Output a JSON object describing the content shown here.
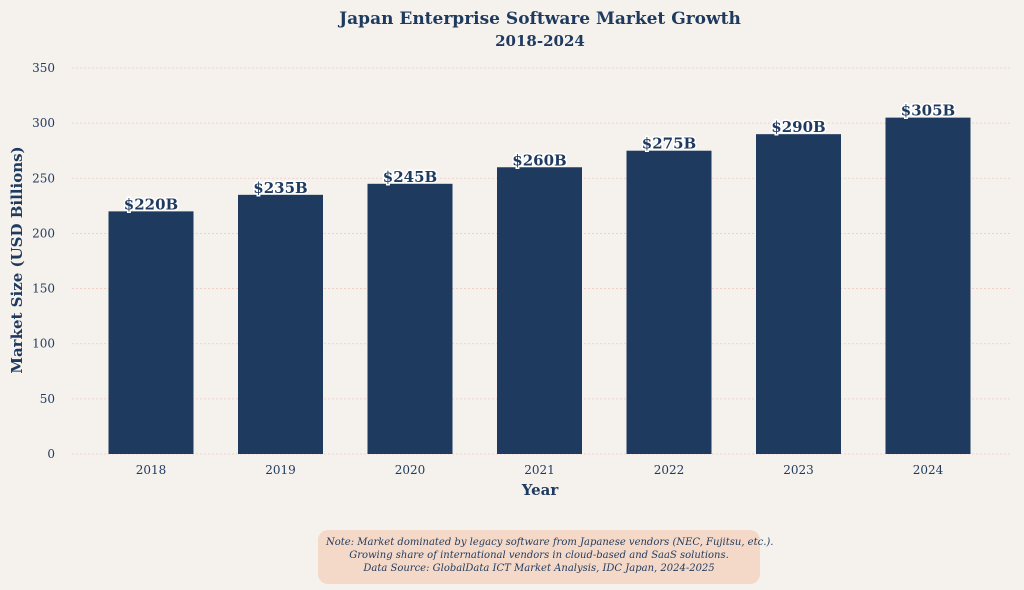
{
  "chart_data": {
    "type": "bar",
    "title": "Japan Enterprise Software Market Growth",
    "subtitle": "2018-2024",
    "xlabel": "Year",
    "ylabel": "Market Size (USD Billions)",
    "categories": [
      "2018",
      "2019",
      "2020",
      "2021",
      "2022",
      "2023",
      "2024"
    ],
    "values": [
      220,
      235,
      245,
      260,
      275,
      290,
      305
    ],
    "data_labels": [
      "$220B",
      "$235B",
      "$245B",
      "$260B",
      "$275B",
      "$290B",
      "$305B"
    ],
    "ylim": [
      0,
      350
    ],
    "yticks": [
      0,
      50,
      100,
      150,
      200,
      250,
      300,
      350
    ],
    "grid": true,
    "colors": {
      "bar": "#1f3a5f",
      "grid": "#f2c9c0",
      "text": "#1f3a5f"
    }
  },
  "note": {
    "lines": [
      "Note: Market dominated by legacy software from Japanese vendors (NEC, Fujitsu, etc.).",
      "Growing share of international vendors in cloud-based and SaaS solutions.",
      "Data Source: GlobalData ICT Market Analysis, IDC Japan, 2024-2025"
    ]
  }
}
